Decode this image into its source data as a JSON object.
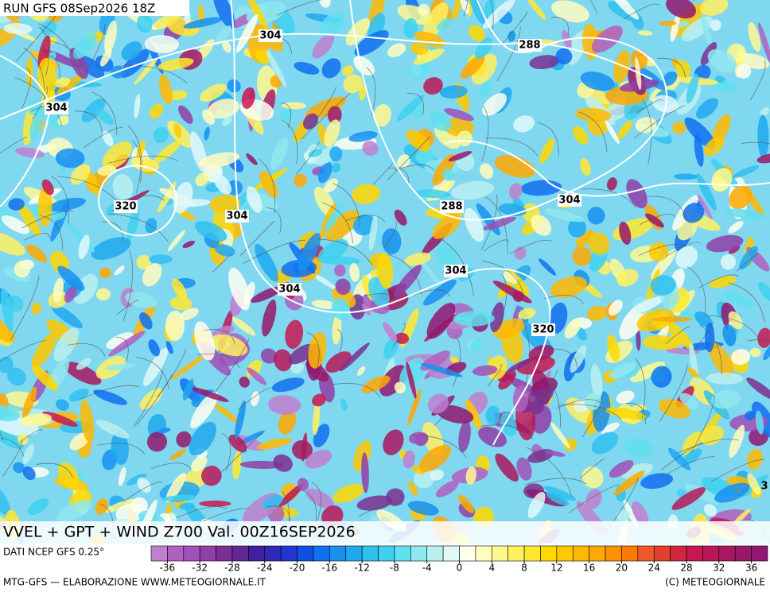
{
  "header": {
    "run": "RUN GFS 08Sep2026 18Z"
  },
  "contour_labels": [
    "304",
    "288",
    "304",
    "320",
    "304",
    "288",
    "304",
    "304",
    "304",
    "320",
    "3"
  ],
  "title": "VVEL + GPT + WIND Z700 Val. 00Z16SEP2026",
  "source": "DATI NCEP GFS 0.25°",
  "colorbar": {
    "lim": [
      -38,
      38
    ],
    "ticks": [
      -36,
      -32,
      -28,
      -24,
      -20,
      -16,
      -12,
      -8,
      -4,
      0,
      4,
      8,
      12,
      16,
      20,
      24,
      28,
      32,
      36
    ],
    "colors": [
      "#c080d0",
      "#b060c0",
      "#a050b8",
      "#9040a8",
      "#7a3090",
      "#602890",
      "#4020a0",
      "#3028b8",
      "#2038d0",
      "#1050e0",
      "#1070f0",
      "#1890f0",
      "#20a8f0",
      "#30c0f0",
      "#40d0f0",
      "#60e0f0",
      "#90e8f0",
      "#b8f0f0",
      "#e0f8f8",
      "#fffff0",
      "#fffcc0",
      "#fff890",
      "#fff060",
      "#ffe830",
      "#ffd800",
      "#ffc800",
      "#ffb800",
      "#ffa800",
      "#ff9000",
      "#ff7800",
      "#f05828",
      "#e04030",
      "#d02840",
      "#c81850",
      "#b81858",
      "#a81860",
      "#981868",
      "#901870"
    ]
  },
  "footer": {
    "left": "MTG-GFS — ELABORAZIONE WWW.METEOGIORNALE.IT",
    "right": "(C) METEOGIORNALE"
  }
}
